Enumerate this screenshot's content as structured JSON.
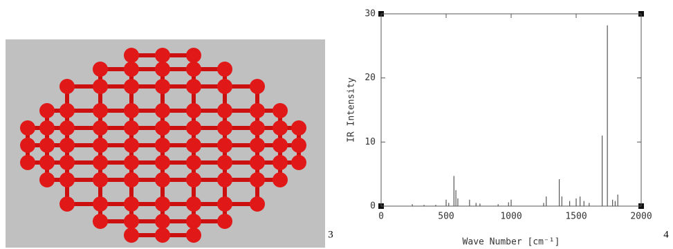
{
  "panel_labels": [
    "3",
    "4"
  ],
  "chart_data": {
    "type": "stem",
    "x_label": "Wave Number [cm⁻¹]",
    "y_label": "IR Intensity",
    "x": [
      240,
      330,
      420,
      500,
      520,
      560,
      575,
      590,
      680,
      730,
      760,
      900,
      980,
      1000,
      1250,
      1270,
      1370,
      1390,
      1450,
      1500,
      1530,
      1560,
      1600,
      1700,
      1740,
      1780,
      1800,
      1820
    ],
    "values": [
      0.3,
      0.2,
      0.2,
      1.0,
      0.5,
      4.7,
      2.5,
      1.2,
      1.0,
      0.5,
      0.4,
      0.3,
      0.6,
      1.0,
      0.5,
      1.5,
      4.2,
      1.5,
      0.8,
      1.2,
      1.5,
      0.8,
      0.5,
      11.0,
      28.2,
      1.0,
      0.8,
      1.8
    ],
    "color": "#555555",
    "xlim": [
      0,
      2000
    ],
    "xticks": [
      0,
      500,
      1000,
      1500,
      2000
    ],
    "ylim": [
      0,
      30
    ],
    "yticks": [
      0,
      10,
      20,
      30
    ],
    "grid": false
  }
}
